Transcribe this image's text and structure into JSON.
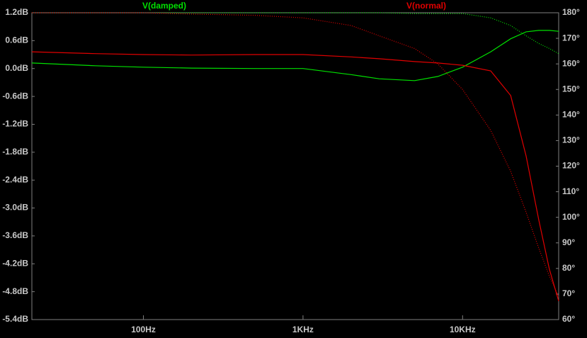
{
  "chart_data": {
    "type": "line",
    "x": [
      20,
      50,
      100,
      200,
      500,
      1000,
      2000,
      3000,
      5000,
      7000,
      10000,
      15000,
      20000,
      25000,
      30000,
      35000,
      40000
    ],
    "xlim": [
      20,
      40000
    ],
    "xscale": "log",
    "xticks": [
      {
        "value": 100,
        "label": "100Hz"
      },
      {
        "value": 1000,
        "label": "1KHz"
      },
      {
        "value": 10000,
        "label": "10KHz"
      }
    ],
    "ylim": [
      -5.4,
      1.2
    ],
    "yticks": [
      {
        "value": 1.2,
        "label": "1.2dB"
      },
      {
        "value": 0.6,
        "label": "0.6dB"
      },
      {
        "value": 0,
        "label": "0.0dB"
      },
      {
        "value": -0.6,
        "label": "-0.6dB"
      },
      {
        "value": -1.2,
        "label": "-1.2dB"
      },
      {
        "value": -1.8,
        "label": "-1.8dB"
      },
      {
        "value": -2.4,
        "label": "-2.4dB"
      },
      {
        "value": -3.0,
        "label": "-3.0dB"
      },
      {
        "value": -3.6,
        "label": "-3.6dB"
      },
      {
        "value": -4.2,
        "label": "-4.2dB"
      },
      {
        "value": -4.8,
        "label": "-4.8dB"
      },
      {
        "value": -5.4,
        "label": "-5.4dB"
      }
    ],
    "y2lim": [
      60,
      180
    ],
    "y2ticks": [
      {
        "value": 180,
        "label": "180°"
      },
      {
        "value": 170,
        "label": "170°"
      },
      {
        "value": 160,
        "label": "160°"
      },
      {
        "value": 150,
        "label": "150°"
      },
      {
        "value": 140,
        "label": "140°"
      },
      {
        "value": 130,
        "label": "130°"
      },
      {
        "value": 120,
        "label": "120°"
      },
      {
        "value": 110,
        "label": "110°"
      },
      {
        "value": 100,
        "label": "100°"
      },
      {
        "value": 90,
        "label": "90°"
      },
      {
        "value": 80,
        "label": "80°"
      },
      {
        "value": 70,
        "label": "70°"
      },
      {
        "value": 60,
        "label": "60°"
      }
    ],
    "series": [
      {
        "name": "V(damped)",
        "color": "#00e000",
        "values": [
          0.12,
          0.06,
          0.03,
          0.01,
          0.0,
          0.0,
          -0.13,
          -0.22,
          -0.26,
          -0.17,
          0.03,
          0.36,
          0.64,
          0.79,
          0.82,
          0.82,
          0.8
        ],
        "phase": [
          180,
          180,
          180,
          180,
          180,
          180,
          180,
          180,
          179.7,
          179.7,
          179.7,
          178,
          175,
          171,
          168,
          166,
          164
        ]
      },
      {
        "name": "V(normal)",
        "color": "#e00000",
        "values": [
          0.36,
          0.32,
          0.3,
          0.29,
          0.3,
          0.3,
          0.25,
          0.21,
          0.15,
          0.12,
          0.07,
          -0.05,
          -0.58,
          -1.88,
          -3.25,
          -4.32,
          -5.0
        ],
        "phase": [
          180,
          180,
          180,
          179.5,
          179,
          178,
          175,
          171,
          166,
          160,
          150,
          134,
          118,
          102,
          88,
          77,
          69
        ]
      }
    ]
  }
}
